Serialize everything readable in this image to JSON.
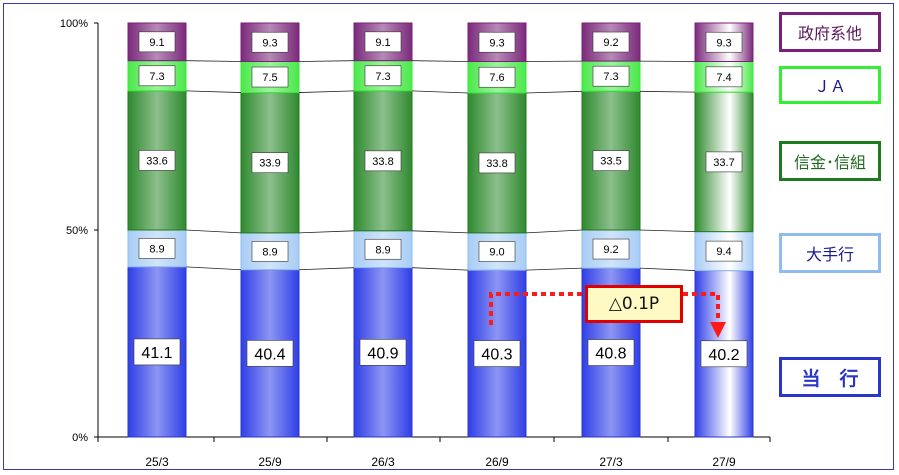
{
  "chart_data": {
    "type": "bar",
    "stacked": true,
    "percent_scale": true,
    "categories": [
      "25/3",
      "25/9",
      "26/3",
      "26/9",
      "27/3",
      "27/9"
    ],
    "series": [
      {
        "name": "当　行",
        "values": [
          41.1,
          40.4,
          40.9,
          40.3,
          40.8,
          40.2
        ],
        "color": "#2f3fe8",
        "border": "#2a36c8",
        "text": "#2a36c8"
      },
      {
        "name": "大手行",
        "values": [
          8.9,
          8.9,
          8.9,
          9.0,
          9.2,
          9.4
        ],
        "color": "#a9cdf5",
        "border": "#8fbbef",
        "text": "#1a1a8a"
      },
      {
        "name": "信金･信組",
        "values": [
          33.6,
          33.9,
          33.8,
          33.8,
          33.5,
          33.7
        ],
        "color": "#2f8a2f",
        "border": "#1e7a1e",
        "text": "#1e6b1e"
      },
      {
        "name": "ＪＡ",
        "values": [
          7.3,
          7.5,
          7.3,
          7.6,
          7.3,
          7.4
        ],
        "color": "#4ce84c",
        "border": "#33ee33",
        "text": "#1a1a8a"
      },
      {
        "name": "政府系他",
        "values": [
          9.1,
          9.3,
          9.1,
          9.3,
          9.2,
          9.3
        ],
        "color": "#7b2a7b",
        "border": "#7a1f7a",
        "text": "#5a1a5a"
      }
    ],
    "y_ticks": [
      "0%",
      "50%",
      "100%"
    ],
    "ylim": [
      0,
      100
    ],
    "annotation": {
      "text": "△0.1P",
      "from_category": "26/9",
      "to_category": "27/9",
      "series": "当　行"
    }
  }
}
